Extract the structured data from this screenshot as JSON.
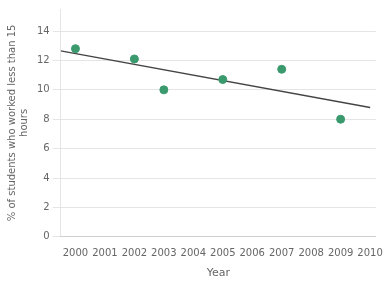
{
  "chart_data": {
    "type": "scatter",
    "xlabel": "Year",
    "ylabel": "% of students who worked less than 15\nhours",
    "series": [
      {
        "type": "scatter",
        "color": "#3a9a6e",
        "x": [
          2000,
          2002,
          2003,
          2005,
          2007,
          2009
        ],
        "values": [
          12.8,
          12.1,
          10.0,
          10.7,
          11.4,
          8.0
        ]
      },
      {
        "type": "line",
        "color": "#444444",
        "x": [
          1999.5,
          2010
        ],
        "values": [
          12.65,
          8.8
        ]
      }
    ],
    "xlim": [
      1999.5,
      2010.2
    ],
    "xticks": [
      2000,
      2001,
      2002,
      2003,
      2004,
      2005,
      2006,
      2007,
      2008,
      2009,
      2010
    ],
    "ylim": [
      0,
      15.5
    ],
    "yticks": [
      0,
      2,
      4,
      6,
      8,
      10,
      12,
      14
    ],
    "grid": "y"
  }
}
